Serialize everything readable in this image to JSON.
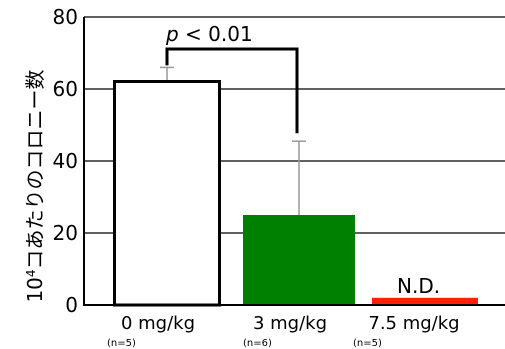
{
  "chart_data": {
    "type": "bar",
    "categories": [
      "0 mg/kg",
      "3 mg/kg",
      "7.5 mg/kg"
    ],
    "sample_sizes": [
      "(n=5)",
      "(n=6)",
      "(n=5)"
    ],
    "values": [
      62.5,
      25,
      2
    ],
    "errors": [
      3.5,
      20.5,
      null
    ],
    "bar_colors": [
      "#ffffff",
      "#008000",
      "#ff2200"
    ],
    "bar_edge_colors": [
      "#000000",
      "#008000",
      "#ff2200"
    ],
    "ylim": [
      0,
      80
    ],
    "yticks": [
      "0",
      "20",
      "40",
      "60",
      "80"
    ],
    "ylabel_superscript": "4",
    "ylabel_base": "10",
    "ylabel": "コあたりのコロニー数",
    "grid": true,
    "annotations": {
      "significance_p": "p",
      "significance_rest": " < 0.01",
      "not_detected": "N.D."
    }
  }
}
